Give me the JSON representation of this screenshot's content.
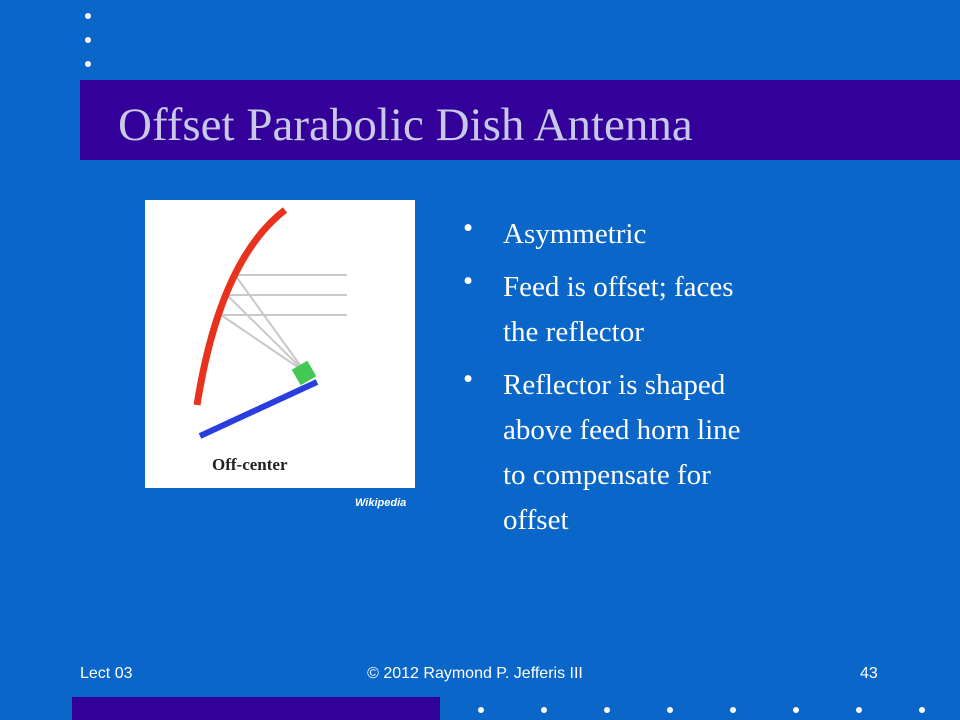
{
  "slide": {
    "title": "Offset Parabolic Dish Antenna",
    "figure": {
      "caption": "Off-center",
      "credit": "Wikipedia"
    },
    "bullets": [
      [
        "Asymmetric"
      ],
      [
        "Feed is offset; faces",
        "the reflector"
      ],
      [
        "Reflector is shaped",
        "above feed horn line",
        "to compensate for",
        "offset"
      ]
    ],
    "footer": {
      "left": "Lect 03",
      "center": "© 2012 Raymond P. Jefferis III",
      "right": "43"
    }
  }
}
